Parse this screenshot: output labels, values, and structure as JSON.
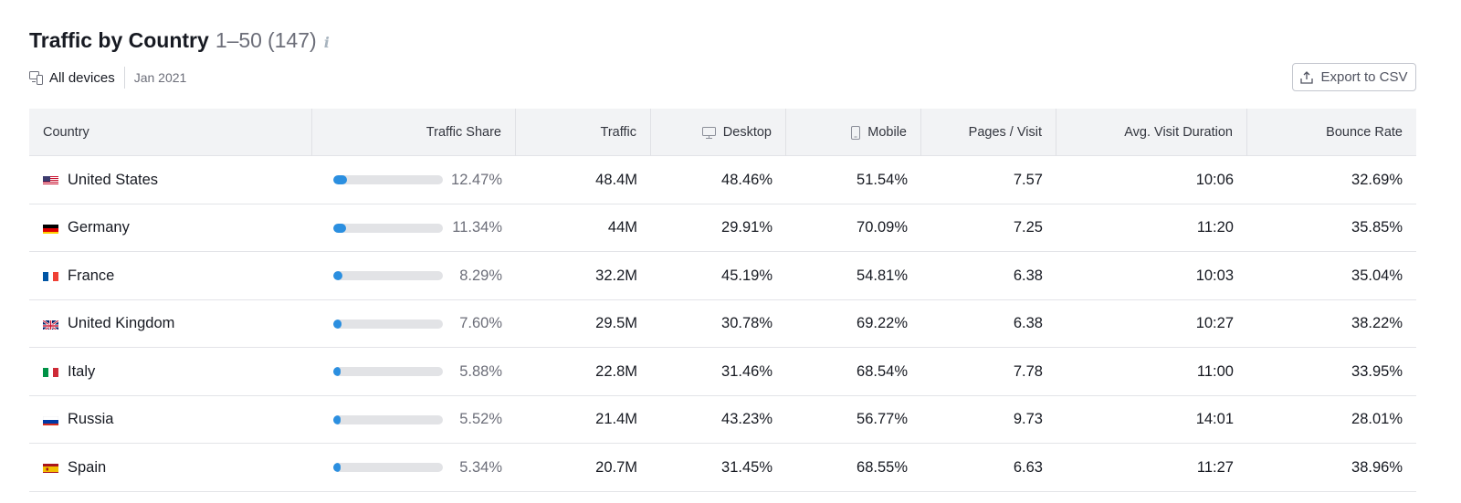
{
  "header": {
    "title": "Traffic by Country",
    "range": "1–50",
    "count": "(147)",
    "info": "i"
  },
  "filters": {
    "devices": "All devices",
    "date": "Jan 2021"
  },
  "export_label": "Export to CSV",
  "columns": {
    "country": "Country",
    "traffic_share": "Traffic Share",
    "traffic": "Traffic",
    "desktop": "Desktop",
    "mobile": "Mobile",
    "pages_visit": "Pages / Visit",
    "avg_visit_duration": "Avg. Visit Duration",
    "bounce_rate": "Bounce Rate"
  },
  "colors": {
    "bar_fill": "#2b8fe0",
    "bar_track": "#e2e3e6"
  },
  "rows": [
    {
      "country": "United States",
      "flag": "us-flag-icon",
      "share": "12.47%",
      "share_fraction": 0.1247,
      "traffic": "48.4M",
      "desktop": "48.46%",
      "mobile": "51.54%",
      "pages": "7.57",
      "duration": "10:06",
      "bounce": "32.69%"
    },
    {
      "country": "Germany",
      "flag": "de-flag-icon",
      "share": "11.34%",
      "share_fraction": 0.1134,
      "traffic": "44M",
      "desktop": "29.91%",
      "mobile": "70.09%",
      "pages": "7.25",
      "duration": "11:20",
      "bounce": "35.85%"
    },
    {
      "country": "France",
      "flag": "fr-flag-icon",
      "share": "8.29%",
      "share_fraction": 0.0829,
      "traffic": "32.2M",
      "desktop": "45.19%",
      "mobile": "54.81%",
      "pages": "6.38",
      "duration": "10:03",
      "bounce": "35.04%"
    },
    {
      "country": "United Kingdom",
      "flag": "gb-flag-icon",
      "share": "7.60%",
      "share_fraction": 0.076,
      "traffic": "29.5M",
      "desktop": "30.78%",
      "mobile": "69.22%",
      "pages": "6.38",
      "duration": "10:27",
      "bounce": "38.22%"
    },
    {
      "country": "Italy",
      "flag": "it-flag-icon",
      "share": "5.88%",
      "share_fraction": 0.0588,
      "traffic": "22.8M",
      "desktop": "31.46%",
      "mobile": "68.54%",
      "pages": "7.78",
      "duration": "11:00",
      "bounce": "33.95%"
    },
    {
      "country": "Russia",
      "flag": "ru-flag-icon",
      "share": "5.52%",
      "share_fraction": 0.0552,
      "traffic": "21.4M",
      "desktop": "43.23%",
      "mobile": "56.77%",
      "pages": "9.73",
      "duration": "14:01",
      "bounce": "28.01%"
    },
    {
      "country": "Spain",
      "flag": "es-flag-icon",
      "share": "5.34%",
      "share_fraction": 0.0534,
      "traffic": "20.7M",
      "desktop": "31.45%",
      "mobile": "68.55%",
      "pages": "6.63",
      "duration": "11:27",
      "bounce": "38.96%"
    }
  ]
}
